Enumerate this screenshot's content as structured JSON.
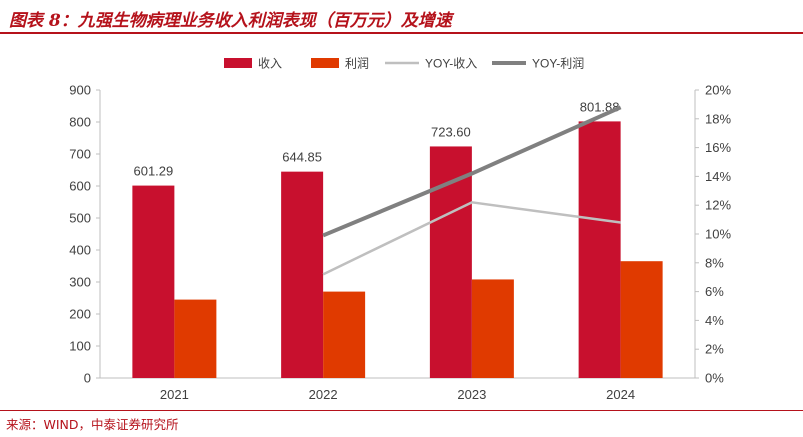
{
  "header": {
    "title": "图表 8：九强生物病理业务收入利润表现（百万元）及增速"
  },
  "footer": {
    "source": "来源：WIND，中泰证券研究所"
  },
  "chart_data": {
    "type": "bar",
    "title": "",
    "xlabel": "",
    "ylabel": "",
    "categories": [
      "2021",
      "2022",
      "2023",
      "2024"
    ],
    "ylim": [
      0,
      900
    ],
    "y_ticks": [
      "0",
      "100",
      "200",
      "300",
      "400",
      "500",
      "600",
      "700",
      "800",
      "900"
    ],
    "y2lim": [
      0,
      20
    ],
    "y2_ticks": [
      "0%",
      "2%",
      "4%",
      "6%",
      "8%",
      "10%",
      "12%",
      "14%",
      "16%",
      "18%",
      "20%"
    ],
    "legend_position": "top",
    "grid": false,
    "series": [
      {
        "name": "收入",
        "kind": "bar",
        "axis": "left",
        "color": "#c8102e",
        "values": [
          601.29,
          644.85,
          723.6,
          801.88
        ],
        "labels": [
          "601.29",
          "644.85",
          "723.60",
          "801.88"
        ]
      },
      {
        "name": "利润",
        "kind": "bar",
        "axis": "left",
        "color": "#e03a00",
        "values": [
          245,
          270,
          308,
          365
        ]
      },
      {
        "name": "YOY-收入",
        "kind": "line",
        "axis": "right",
        "color": "#bfbfbf",
        "values": [
          null,
          7.2,
          12.2,
          10.8
        ]
      },
      {
        "name": "YOY-利润",
        "kind": "line",
        "axis": "right",
        "color": "#808080",
        "values": [
          null,
          9.9,
          14.2,
          18.8
        ]
      }
    ]
  }
}
